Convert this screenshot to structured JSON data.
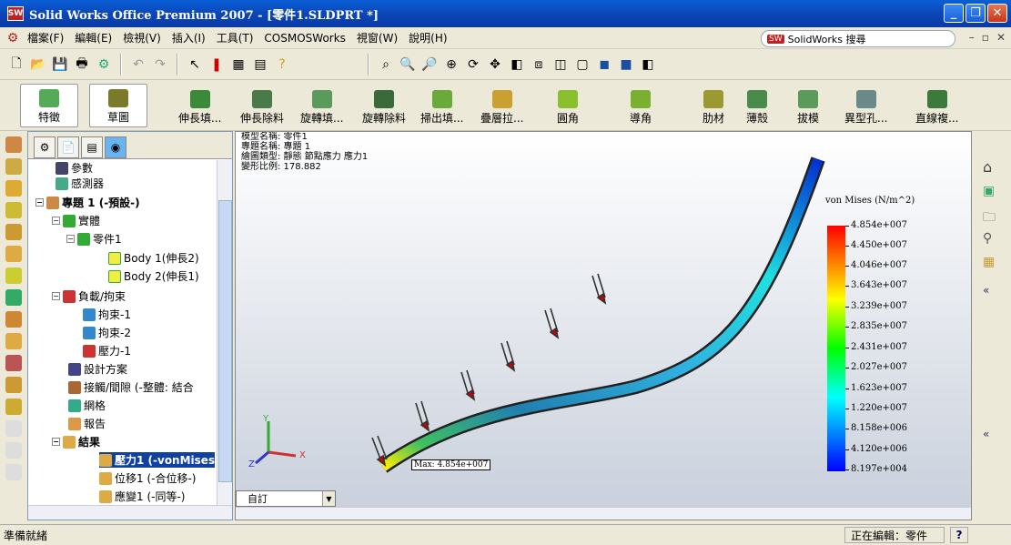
{
  "window": {
    "title": "Solid Works Office Premium 2007 - [零件1.SLDPRT *]",
    "app_icon": "SW"
  },
  "menu": {
    "items": [
      "檔案(F)",
      "編輯(E)",
      "檢視(V)",
      "插入(I)",
      "工具(T)",
      "COSMOSWorks",
      "視窗(W)",
      "說明(H)"
    ],
    "search_placeholder": "SolidWorks 搜尋"
  },
  "commands": [
    {
      "label": "特徵"
    },
    {
      "label": "草圖"
    },
    {
      "label": "伸長填..."
    },
    {
      "label": "伸長除料"
    },
    {
      "label": "旋轉填..."
    },
    {
      "label": "旋轉除料"
    },
    {
      "label": "掃出填..."
    },
    {
      "label": "疊層拉..."
    },
    {
      "label": "圓角"
    },
    {
      "label": "導角"
    },
    {
      "label": "肋材"
    },
    {
      "label": "薄殼"
    },
    {
      "label": "拔模"
    },
    {
      "label": "異型孔..."
    },
    {
      "label": "直線複..."
    }
  ],
  "tree": {
    "items": [
      "參數",
      "感測器",
      "專題 1 (-預設-)",
      "實體",
      "零件1",
      "Body 1(伸長2)",
      "Body 2(伸長1)",
      "負載/拘束",
      "拘束-1",
      "拘束-2",
      "壓力-1",
      "設計方案",
      "接觸/間隙 (-整體: 結合",
      "網格",
      "報告",
      "結果",
      "壓力1 (-vonMises",
      "位移1 (-合位移-)",
      "應變1 (-同等-)"
    ]
  },
  "viewport": {
    "info": [
      "模型名稱: 零件1",
      "專題名稱: 專題 1",
      "繪圖類型: 靜態 節點應力 應力1",
      "變形比例: 178.882"
    ],
    "legend_title": "von Mises (N/m^2)",
    "ticks": [
      "4.854e+007",
      "4.450e+007",
      "4.046e+007",
      "3.643e+007",
      "3.239e+007",
      "2.835e+007",
      "2.431e+007",
      "2.027e+007",
      "1.623e+007",
      "1.220e+007",
      "8.158e+006",
      "4.120e+006",
      "8.197e+004"
    ],
    "max_label": "Max: 4.854e+007",
    "view_select": "自訂",
    "axis_labels": {
      "x": "X",
      "y": "Y",
      "z": "Z"
    }
  },
  "status": {
    "left": "準備就緒",
    "right": "正在編輯：零件",
    "help": "?"
  }
}
